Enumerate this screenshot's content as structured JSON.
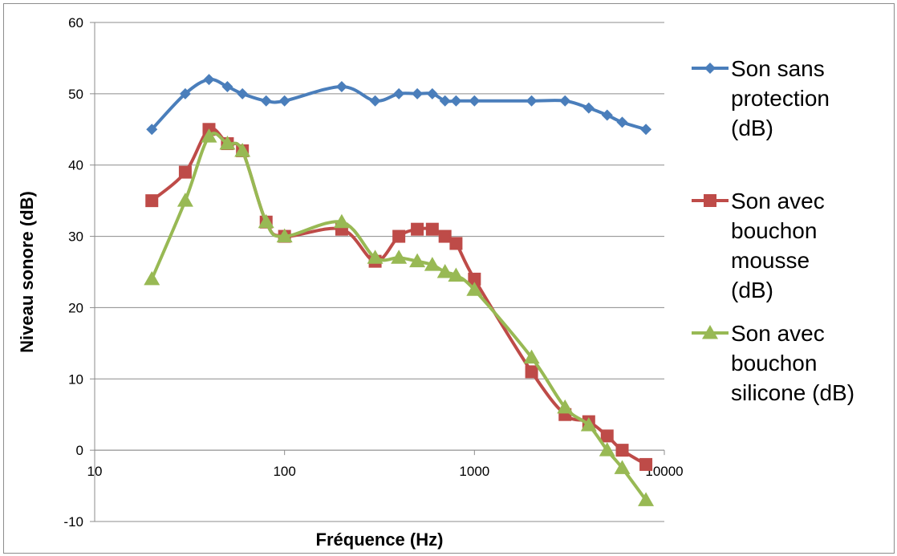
{
  "chart_data": {
    "type": "line",
    "title": "",
    "xlabel": "Fréquence (Hz)",
    "ylabel": "Niveau sonore (dB)",
    "x_scale": "log",
    "xlim": [
      10,
      10000
    ],
    "ylim": [
      -10,
      60
    ],
    "x_ticks": [
      "10",
      "100",
      "1000",
      "10000"
    ],
    "y_ticks": [
      "-10",
      "0",
      "10",
      "20",
      "30",
      "40",
      "50",
      "60"
    ],
    "grid": "horizontal",
    "legend_position": "right",
    "series": [
      {
        "name": "Son sans protection (dB)",
        "legend_lines": [
          "Son sans",
          "protection",
          "(dB)"
        ],
        "color": "#4a7ebb",
        "marker": "diamond",
        "points": [
          [
            20,
            45
          ],
          [
            30,
            50
          ],
          [
            40,
            52
          ],
          [
            50,
            51
          ],
          [
            60,
            50
          ],
          [
            80,
            49
          ],
          [
            100,
            49
          ],
          [
            200,
            51
          ],
          [
            300,
            49
          ],
          [
            400,
            50
          ],
          [
            500,
            50
          ],
          [
            600,
            50
          ],
          [
            700,
            49
          ],
          [
            800,
            49
          ],
          [
            1000,
            49
          ],
          [
            2000,
            49
          ],
          [
            3000,
            49
          ],
          [
            4000,
            48
          ],
          [
            5000,
            47
          ],
          [
            6000,
            46
          ],
          [
            8000,
            45
          ]
        ]
      },
      {
        "name": "Son avec bouchon mousse (dB)",
        "legend_lines": [
          "Son avec",
          "bouchon",
          "mousse",
          "(dB)"
        ],
        "color": "#be4b48",
        "marker": "square",
        "points": [
          [
            20,
            35
          ],
          [
            30,
            39
          ],
          [
            40,
            45
          ],
          [
            50,
            43
          ],
          [
            60,
            42
          ],
          [
            80,
            32
          ],
          [
            100,
            30
          ],
          [
            200,
            31
          ],
          [
            300,
            26.5
          ],
          [
            400,
            30
          ],
          [
            500,
            31
          ],
          [
            600,
            31
          ],
          [
            700,
            30
          ],
          [
            800,
            29
          ],
          [
            1000,
            24
          ],
          [
            2000,
            11
          ],
          [
            3000,
            5
          ],
          [
            4000,
            4
          ],
          [
            5000,
            2
          ],
          [
            6000,
            0
          ],
          [
            8000,
            -2
          ]
        ]
      },
      {
        "name": "Son avec bouchon silicone (dB)",
        "legend_lines": [
          "Son avec",
          "bouchon",
          "silicone (dB)"
        ],
        "color": "#98b954",
        "marker": "triangle",
        "points": [
          [
            20,
            24
          ],
          [
            30,
            35
          ],
          [
            40,
            44
          ],
          [
            50,
            43
          ],
          [
            60,
            42
          ],
          [
            80,
            32
          ],
          [
            100,
            30
          ],
          [
            200,
            32
          ],
          [
            300,
            27
          ],
          [
            400,
            27
          ],
          [
            500,
            26.5
          ],
          [
            600,
            26
          ],
          [
            700,
            25
          ],
          [
            800,
            24.5
          ],
          [
            1000,
            22.5
          ],
          [
            2000,
            13
          ],
          [
            3000,
            6
          ],
          [
            4000,
            3.5
          ],
          [
            5000,
            0
          ],
          [
            6000,
            -2.5
          ],
          [
            8000,
            -7
          ]
        ]
      }
    ]
  }
}
